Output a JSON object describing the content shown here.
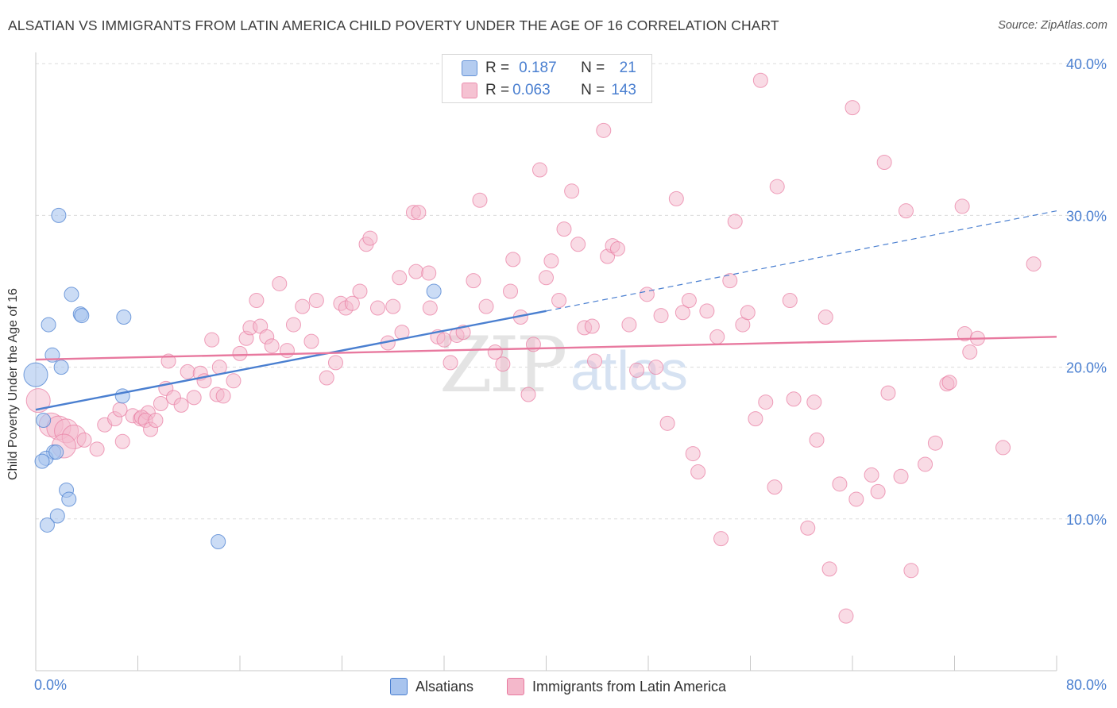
{
  "header": {
    "title": "ALSATIAN VS IMMIGRANTS FROM LATIN AMERICA CHILD POVERTY UNDER THE AGE OF 16 CORRELATION CHART",
    "source": "Source: ZipAtlas.com"
  },
  "watermark": {
    "zip": "ZIP",
    "atlas": "atlas"
  },
  "legend": {
    "r_label": "R =",
    "n_label": "N =",
    "rows": [
      {
        "r": "0.187",
        "n": "21",
        "color": "#4a7fd0"
      },
      {
        "r": "0.063",
        "n": "143",
        "color": "#e8799f"
      }
    ]
  },
  "bottom_legend": {
    "series_a": "Alsatians",
    "series_b": "Immigrants from Latin America"
  },
  "chart_data": {
    "type": "scatter",
    "ylabel": "Child Poverty Under the Age of 16",
    "xlim": [
      0,
      80
    ],
    "ylim": [
      0,
      40
    ],
    "x_tick_labels": [
      "0.0%",
      "80.0%"
    ],
    "y_ticks": [
      10,
      20,
      30,
      40
    ],
    "y_tick_labels": [
      "10.0%",
      "20.0%",
      "30.0%",
      "40.0%"
    ],
    "grid": true,
    "colors": {
      "alsatians": "#4a7fd0",
      "latin": "#e8799f",
      "alsatians_fill": "#a8c4ee",
      "latin_fill": "#f4b8cb"
    },
    "series": [
      {
        "name": "Alsatians",
        "trend": {
          "x1": 0,
          "y1": 17.2,
          "x2": 40,
          "y2": 23.7,
          "dash_x2": 80,
          "dash_y2": 30.3
        },
        "points": [
          [
            0.0,
            19.5
          ],
          [
            1.8,
            30.0
          ],
          [
            2.8,
            24.8
          ],
          [
            3.5,
            23.5
          ],
          [
            3.6,
            23.4
          ],
          [
            1.0,
            22.8
          ],
          [
            1.3,
            20.8
          ],
          [
            2.0,
            20.0
          ],
          [
            6.8,
            18.1
          ],
          [
            0.6,
            16.5
          ],
          [
            1.4,
            14.4
          ],
          [
            0.8,
            14.0
          ],
          [
            0.5,
            13.8
          ],
          [
            2.4,
            11.9
          ],
          [
            2.6,
            11.3
          ],
          [
            1.7,
            10.2
          ],
          [
            0.9,
            9.6
          ],
          [
            14.3,
            8.5
          ],
          [
            6.9,
            23.3
          ],
          [
            31.2,
            25.0
          ],
          [
            1.6,
            14.4
          ]
        ]
      },
      {
        "name": "Immigrants from Latin America",
        "trend": {
          "x1": 0,
          "y1": 20.5,
          "x2": 80,
          "y2": 22.0
        },
        "points": [
          [
            0.2,
            17.8
          ],
          [
            1.2,
            16.2
          ],
          [
            1.8,
            16.0
          ],
          [
            2.4,
            15.8
          ],
          [
            3.0,
            15.4
          ],
          [
            2.2,
            14.8
          ],
          [
            3.8,
            15.2
          ],
          [
            4.8,
            14.6
          ],
          [
            5.4,
            16.2
          ],
          [
            6.2,
            16.6
          ],
          [
            6.6,
            17.2
          ],
          [
            6.8,
            15.1
          ],
          [
            7.6,
            16.8
          ],
          [
            8.2,
            16.6
          ],
          [
            8.8,
            17.0
          ],
          [
            8.3,
            16.7
          ],
          [
            8.6,
            16.5
          ],
          [
            9.0,
            15.9
          ],
          [
            9.4,
            16.5
          ],
          [
            9.8,
            17.6
          ],
          [
            10.2,
            18.6
          ],
          [
            10.4,
            20.4
          ],
          [
            10.8,
            18.0
          ],
          [
            11.4,
            17.5
          ],
          [
            11.9,
            19.7
          ],
          [
            12.4,
            18.0
          ],
          [
            12.9,
            19.6
          ],
          [
            13.2,
            19.1
          ],
          [
            13.8,
            21.8
          ],
          [
            14.2,
            18.2
          ],
          [
            14.4,
            20.0
          ],
          [
            14.7,
            18.1
          ],
          [
            15.5,
            19.1
          ],
          [
            16.0,
            20.9
          ],
          [
            16.5,
            21.9
          ],
          [
            16.8,
            22.6
          ],
          [
            17.6,
            22.7
          ],
          [
            17.3,
            24.4
          ],
          [
            18.1,
            22.0
          ],
          [
            18.5,
            21.4
          ],
          [
            19.1,
            25.5
          ],
          [
            19.7,
            21.1
          ],
          [
            20.2,
            22.8
          ],
          [
            20.9,
            24.0
          ],
          [
            21.6,
            21.7
          ],
          [
            22.0,
            24.4
          ],
          [
            22.8,
            19.3
          ],
          [
            23.5,
            20.3
          ],
          [
            23.9,
            24.2
          ],
          [
            24.3,
            23.9
          ],
          [
            24.8,
            24.2
          ],
          [
            25.4,
            25.0
          ],
          [
            25.9,
            28.1
          ],
          [
            26.2,
            28.5
          ],
          [
            26.8,
            23.9
          ],
          [
            27.6,
            21.6
          ],
          [
            28.0,
            24.0
          ],
          [
            28.7,
            22.3
          ],
          [
            28.5,
            25.9
          ],
          [
            29.8,
            26.3
          ],
          [
            29.6,
            30.2
          ],
          [
            30.0,
            30.2
          ],
          [
            30.8,
            26.2
          ],
          [
            30.9,
            23.9
          ],
          [
            31.5,
            22.0
          ],
          [
            32.0,
            21.8
          ],
          [
            32.5,
            20.3
          ],
          [
            33.0,
            22.1
          ],
          [
            33.5,
            22.3
          ],
          [
            34.3,
            25.7
          ],
          [
            34.8,
            31.0
          ],
          [
            35.3,
            24.0
          ],
          [
            36.0,
            21.0
          ],
          [
            36.6,
            20.2
          ],
          [
            37.2,
            25.0
          ],
          [
            37.4,
            27.1
          ],
          [
            38.0,
            23.3
          ],
          [
            38.6,
            18.2
          ],
          [
            39.0,
            21.5
          ],
          [
            39.5,
            33.0
          ],
          [
            40.0,
            25.9
          ],
          [
            40.4,
            27.0
          ],
          [
            41.0,
            24.4
          ],
          [
            41.4,
            29.1
          ],
          [
            42.0,
            31.6
          ],
          [
            42.5,
            28.1
          ],
          [
            43.0,
            22.6
          ],
          [
            43.6,
            22.7
          ],
          [
            43.8,
            20.4
          ],
          [
            44.5,
            35.6
          ],
          [
            44.8,
            27.3
          ],
          [
            45.2,
            28.0
          ],
          [
            45.6,
            27.8
          ],
          [
            46.5,
            22.8
          ],
          [
            47.1,
            19.8
          ],
          [
            47.9,
            24.8
          ],
          [
            48.6,
            20.0
          ],
          [
            49.0,
            23.4
          ],
          [
            49.5,
            16.3
          ],
          [
            50.2,
            31.1
          ],
          [
            50.7,
            23.6
          ],
          [
            51.2,
            24.4
          ],
          [
            51.5,
            14.3
          ],
          [
            51.9,
            13.1
          ],
          [
            52.6,
            23.7
          ],
          [
            53.4,
            22.0
          ],
          [
            53.7,
            8.7
          ],
          [
            54.4,
            25.7
          ],
          [
            54.8,
            29.6
          ],
          [
            55.4,
            22.8
          ],
          [
            55.8,
            23.6
          ],
          [
            56.4,
            16.6
          ],
          [
            56.8,
            38.9
          ],
          [
            57.2,
            17.7
          ],
          [
            57.9,
            12.1
          ],
          [
            58.1,
            31.9
          ],
          [
            59.1,
            24.4
          ],
          [
            59.4,
            17.9
          ],
          [
            60.5,
            9.4
          ],
          [
            61.0,
            17.7
          ],
          [
            61.2,
            15.2
          ],
          [
            61.9,
            23.3
          ],
          [
            62.2,
            6.7
          ],
          [
            63.0,
            12.3
          ],
          [
            63.5,
            3.6
          ],
          [
            64.0,
            37.1
          ],
          [
            64.3,
            11.3
          ],
          [
            65.5,
            12.9
          ],
          [
            66.0,
            11.8
          ],
          [
            66.5,
            33.5
          ],
          [
            66.8,
            18.3
          ],
          [
            67.8,
            12.8
          ],
          [
            68.2,
            30.3
          ],
          [
            68.6,
            6.6
          ],
          [
            69.7,
            13.6
          ],
          [
            70.5,
            15.0
          ],
          [
            71.4,
            18.9
          ],
          [
            71.6,
            19.0
          ],
          [
            72.6,
            30.6
          ],
          [
            72.8,
            22.2
          ],
          [
            73.2,
            21.0
          ],
          [
            73.8,
            21.9
          ],
          [
            75.8,
            14.7
          ],
          [
            78.2,
            26.8
          ]
        ]
      }
    ]
  }
}
